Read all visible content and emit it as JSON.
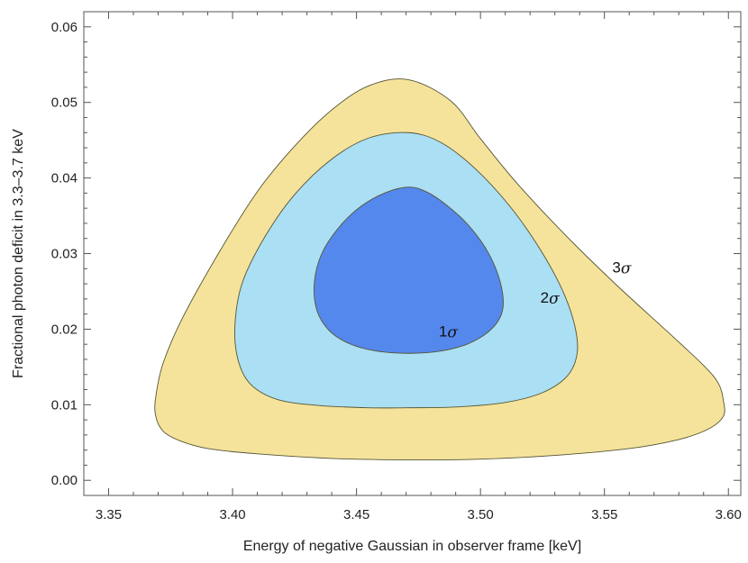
{
  "chart_data": {
    "type": "contour",
    "title": "",
    "xlabel": "Energy of negative Gaussian in observer frame [keV]",
    "ylabel": "Fractional photon deficit in 3.3–3.7 keV",
    "xlim": [
      3.34,
      3.605
    ],
    "ylim": [
      -0.002,
      0.062
    ],
    "xticks": [
      3.35,
      3.4,
      3.45,
      3.5,
      3.55,
      3.6
    ],
    "xtick_labels": [
      "3.35",
      "3.40",
      "3.45",
      "3.50",
      "3.55",
      "3.60"
    ],
    "yticks": [
      0.0,
      0.01,
      0.02,
      0.03,
      0.04,
      0.05,
      0.06
    ],
    "ytick_labels": [
      "0.00",
      "0.01",
      "0.02",
      "0.03",
      "0.04",
      "0.05",
      "0.06"
    ],
    "grid": false,
    "series": [
      {
        "name": "3σ",
        "label_number": "3",
        "label_symbol": "σ",
        "label_at": [
          3.557,
          0.028
        ],
        "color": "#f5e39c",
        "contour": [
          [
            3.471,
            0.053
          ],
          [
            3.455,
            0.0522
          ],
          [
            3.44,
            0.049
          ],
          [
            3.425,
            0.0442
          ],
          [
            3.41,
            0.0382
          ],
          [
            3.395,
            0.0304
          ],
          [
            3.38,
            0.0216
          ],
          [
            3.372,
            0.0155
          ],
          [
            3.369,
            0.011
          ],
          [
            3.369,
            0.0085
          ],
          [
            3.372,
            0.0065
          ],
          [
            3.379,
            0.0052
          ],
          [
            3.39,
            0.0042
          ],
          [
            3.41,
            0.0035
          ],
          [
            3.44,
            0.0029
          ],
          [
            3.47,
            0.0027
          ],
          [
            3.5,
            0.0028
          ],
          [
            3.53,
            0.0033
          ],
          [
            3.56,
            0.0042
          ],
          [
            3.58,
            0.0054
          ],
          [
            3.592,
            0.0068
          ],
          [
            3.598,
            0.0085
          ],
          [
            3.598,
            0.0105
          ],
          [
            3.596,
            0.0128
          ],
          [
            3.59,
            0.0152
          ],
          [
            3.575,
            0.0198
          ],
          [
            3.555,
            0.0258
          ],
          [
            3.535,
            0.0322
          ],
          [
            3.515,
            0.0392
          ],
          [
            3.5,
            0.0452
          ],
          [
            3.488,
            0.0502
          ]
        ]
      },
      {
        "name": "2σ",
        "label_number": "2",
        "label_symbol": "σ",
        "label_at": [
          3.528,
          0.024
        ],
        "color": "#abdff3",
        "contour": [
          [
            3.471,
            0.046
          ],
          [
            3.455,
            0.0453
          ],
          [
            3.44,
            0.0425
          ],
          [
            3.425,
            0.0378
          ],
          [
            3.413,
            0.0322
          ],
          [
            3.404,
            0.0262
          ],
          [
            3.401,
            0.0208
          ],
          [
            3.402,
            0.0162
          ],
          [
            3.407,
            0.0128
          ],
          [
            3.418,
            0.0107
          ],
          [
            3.435,
            0.0099
          ],
          [
            3.455,
            0.0096
          ],
          [
            3.47,
            0.0096
          ],
          [
            3.49,
            0.0097
          ],
          [
            3.51,
            0.0103
          ],
          [
            3.525,
            0.0116
          ],
          [
            3.535,
            0.0138
          ],
          [
            3.539,
            0.0168
          ],
          [
            3.538,
            0.0205
          ],
          [
            3.533,
            0.0252
          ],
          [
            3.524,
            0.0306
          ],
          [
            3.512,
            0.0362
          ],
          [
            3.498,
            0.0412
          ],
          [
            3.484,
            0.0447
          ]
        ]
      },
      {
        "name": "1σ",
        "label_number": "1",
        "label_symbol": "σ",
        "label_at": [
          3.487,
          0.0195
        ],
        "color": "#5588ed",
        "contour": [
          [
            3.471,
            0.0388
          ],
          [
            3.462,
            0.0381
          ],
          [
            3.452,
            0.0363
          ],
          [
            3.443,
            0.0335
          ],
          [
            3.436,
            0.03
          ],
          [
            3.433,
            0.0262
          ],
          [
            3.434,
            0.0225
          ],
          [
            3.439,
            0.0198
          ],
          [
            3.447,
            0.0181
          ],
          [
            3.458,
            0.0171
          ],
          [
            3.471,
            0.0168
          ],
          [
            3.484,
            0.0171
          ],
          [
            3.496,
            0.0182
          ],
          [
            3.505,
            0.0202
          ],
          [
            3.509,
            0.0227
          ],
          [
            3.508,
            0.0262
          ],
          [
            3.503,
            0.0302
          ],
          [
            3.495,
            0.0338
          ],
          [
            3.486,
            0.0365
          ],
          [
            3.478,
            0.0382
          ]
        ]
      }
    ]
  }
}
